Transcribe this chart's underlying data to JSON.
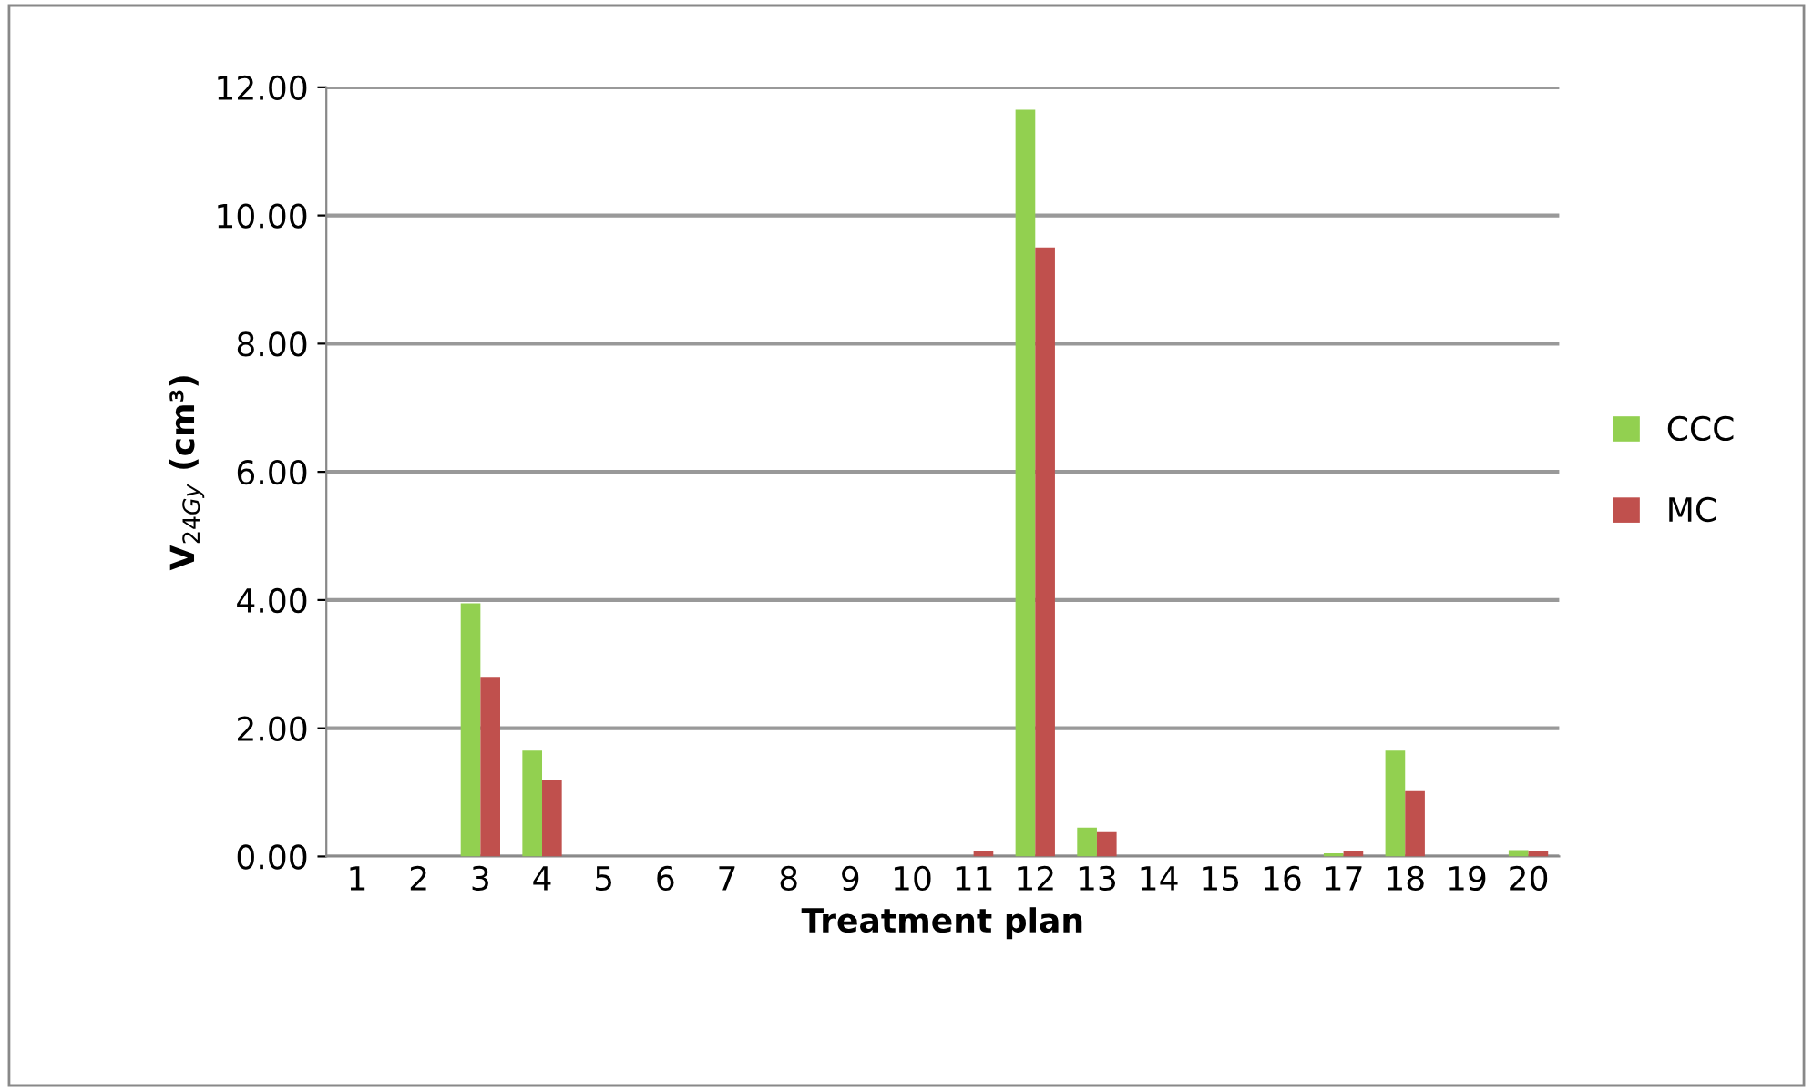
{
  "chart_data": {
    "type": "bar",
    "xlabel": "Treatment plan",
    "ylabel": "V$_{24Gy}$ (cm³)",
    "categories": [
      "1",
      "2",
      "3",
      "4",
      "5",
      "6",
      "7",
      "8",
      "9",
      "10",
      "11",
      "12",
      "13",
      "14",
      "15",
      "16",
      "17",
      "18",
      "19",
      "20"
    ],
    "series": [
      {
        "name": "CCC",
        "color": "#92d050",
        "values": [
          0,
          0,
          3.95,
          1.65,
          0,
          0,
          0,
          0,
          0,
          0,
          0,
          11.65,
          0.45,
          0,
          0,
          0,
          0.05,
          1.65,
          0,
          0.1
        ]
      },
      {
        "name": "MC",
        "color": "#c0504d",
        "values": [
          0,
          0,
          2.8,
          1.2,
          0,
          0,
          0,
          0,
          0,
          0,
          0.08,
          9.5,
          0.38,
          0,
          0,
          0,
          0.08,
          1.02,
          0,
          0.08
        ]
      }
    ],
    "ylim": [
      0,
      12
    ],
    "yticks": [
      {
        "value": 0,
        "label": "0.00"
      },
      {
        "value": 2,
        "label": "2.00"
      },
      {
        "value": 4,
        "label": "4.00"
      },
      {
        "value": 6,
        "label": "6.00"
      },
      {
        "value": 8,
        "label": "8.00"
      },
      {
        "value": 10,
        "label": "10.00"
      },
      {
        "value": 12,
        "label": "12.00"
      }
    ],
    "grid": "y",
    "legend": "right"
  }
}
